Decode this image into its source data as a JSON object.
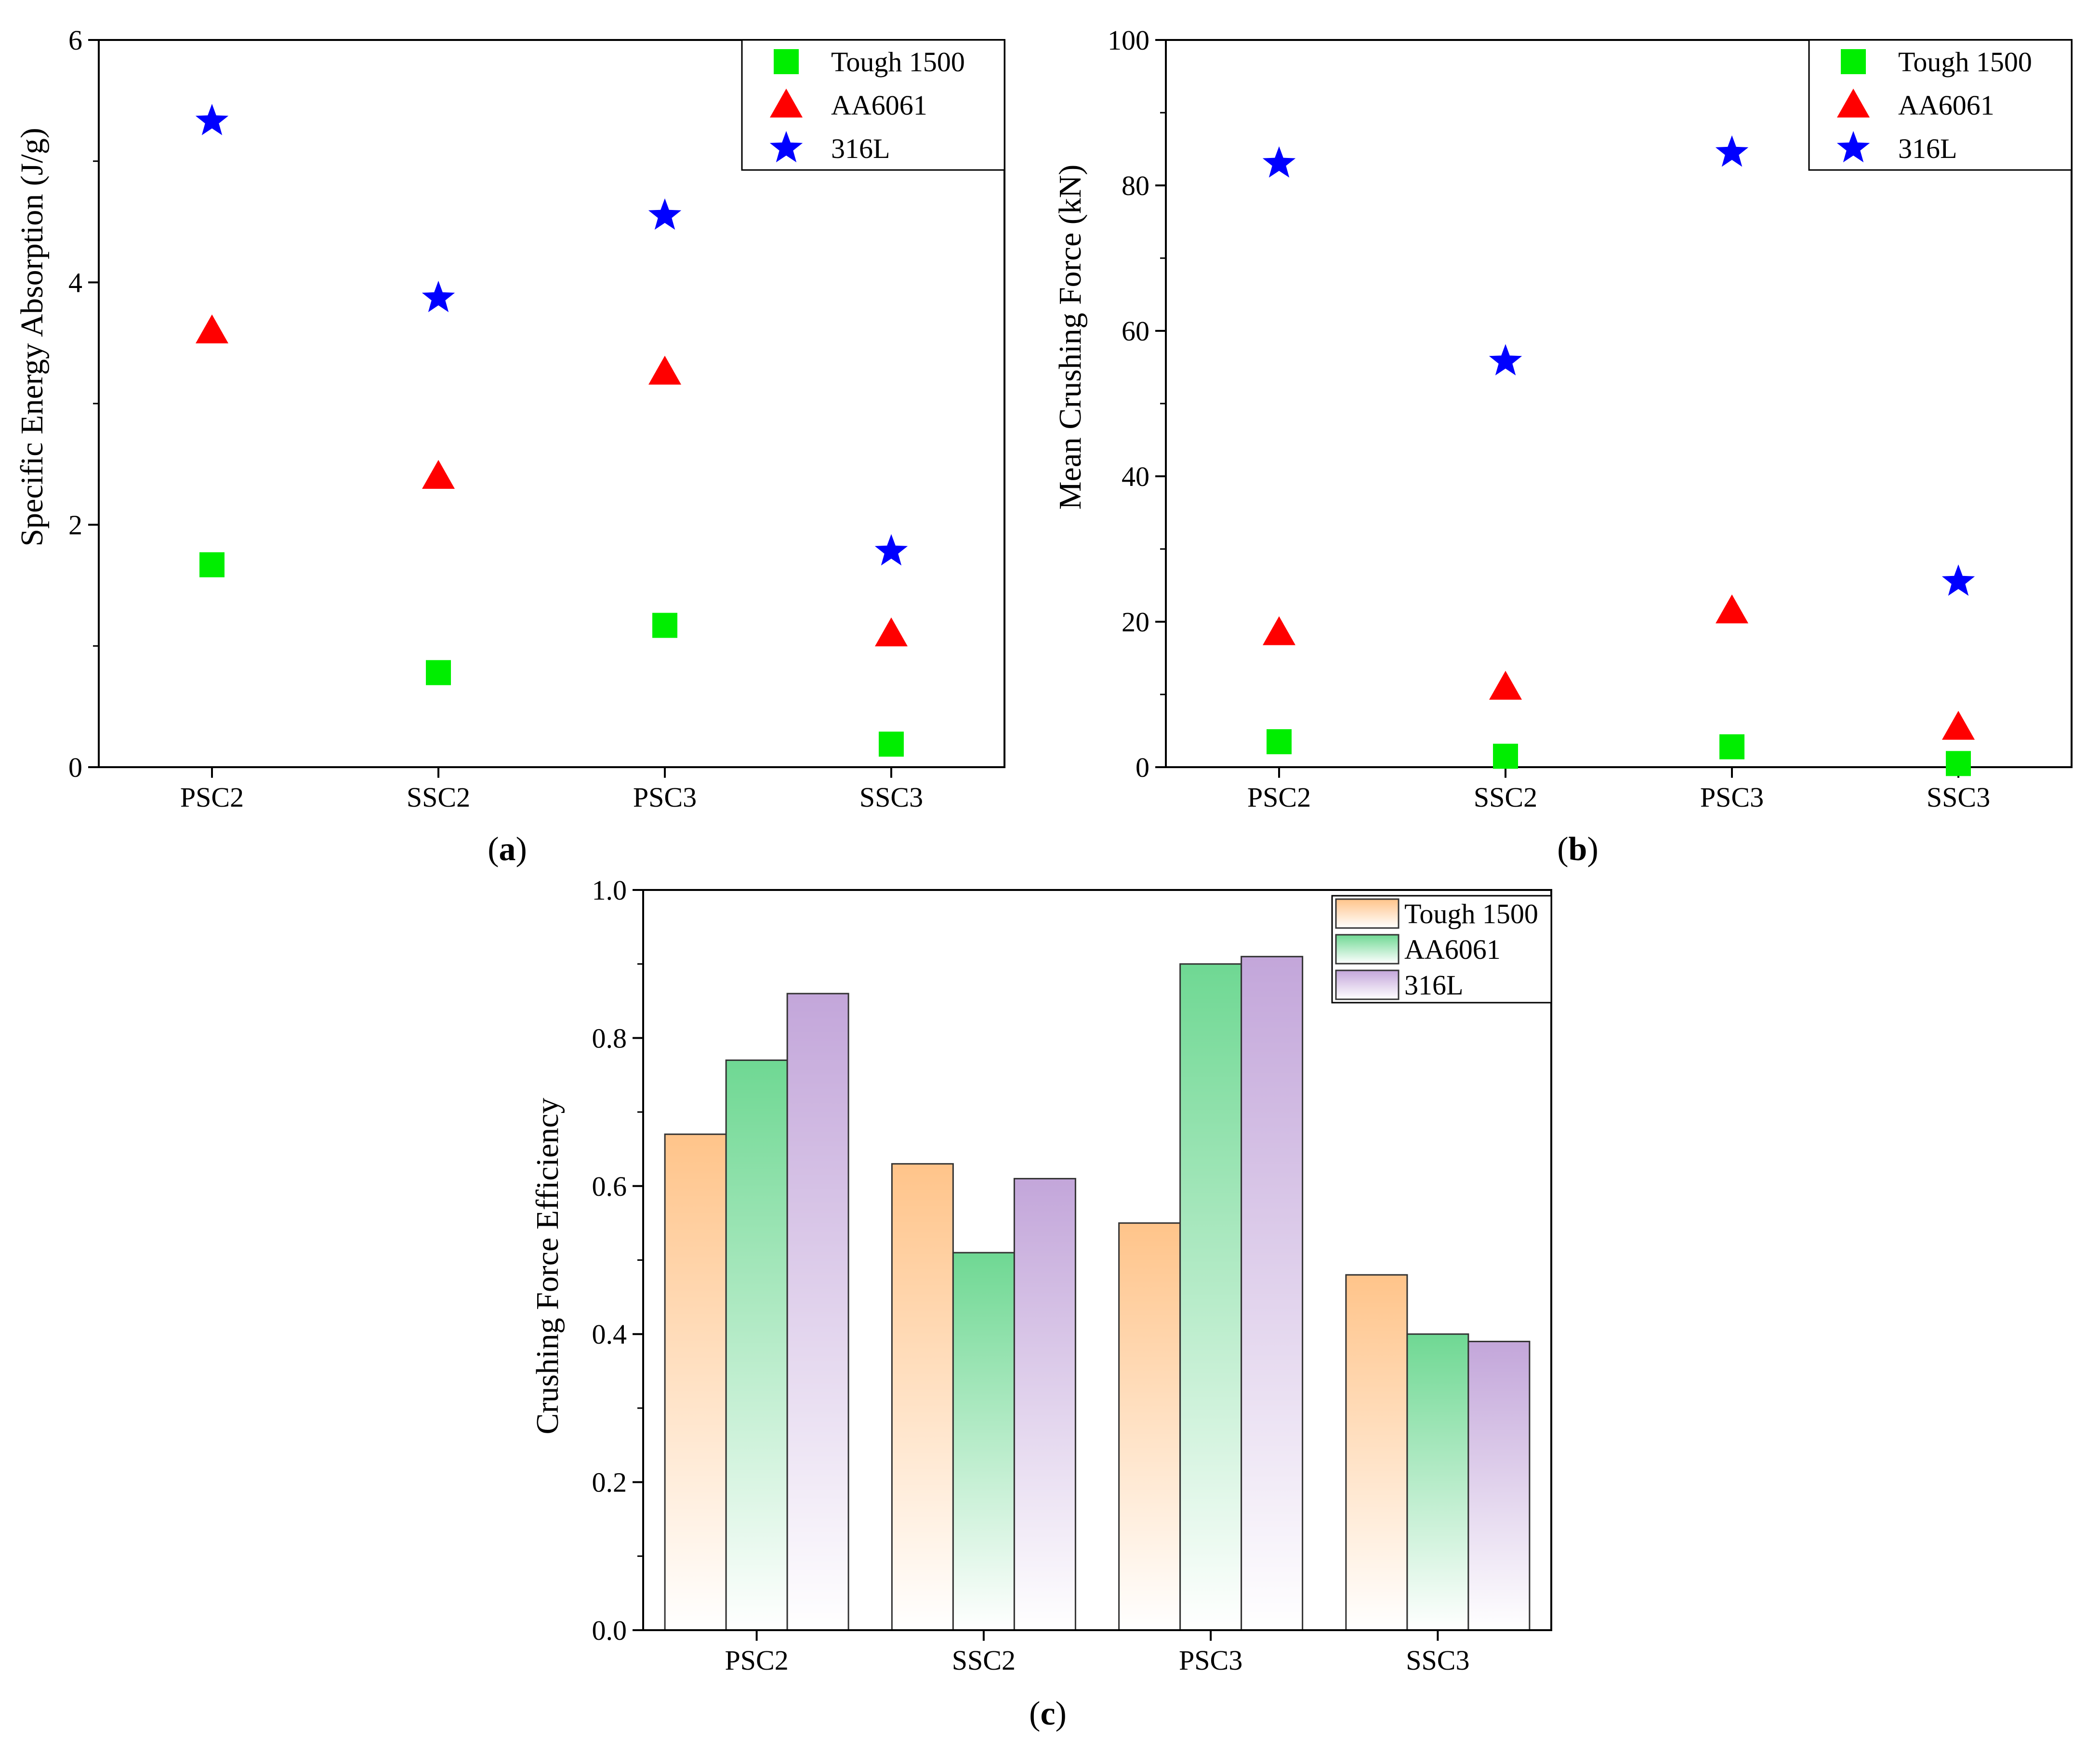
{
  "figure": {
    "panels": [
      {
        "id": "a",
        "label": "(a)",
        "label_letter": "a"
      },
      {
        "id": "b",
        "label": "(b)",
        "label_letter": "b"
      },
      {
        "id": "c",
        "label": "(c)",
        "label_letter": "c"
      }
    ]
  },
  "chart_data": [
    {
      "id": "a",
      "type": "scatter",
      "title": "",
      "xlabel": "",
      "ylabel": "Specific Energy Absorption (J/g)",
      "categories": [
        "PSC2",
        "SSC2",
        "PSC3",
        "SSC3"
      ],
      "ylim": [
        0,
        6
      ],
      "yticks": [
        0,
        2,
        4,
        6
      ],
      "grid": false,
      "legend": "top-right",
      "series": [
        {
          "name": "Tough 1500",
          "marker": "square",
          "color": "#00ee00",
          "values": [
            1.67,
            0.78,
            1.17,
            0.19
          ]
        },
        {
          "name": "AA6061",
          "marker": "triangle",
          "color": "#ff0000",
          "values": [
            3.6,
            2.4,
            3.26,
            1.1
          ]
        },
        {
          "name": "316L",
          "marker": "star",
          "color": "#0000ff",
          "values": [
            5.33,
            3.87,
            4.55,
            1.78
          ]
        }
      ]
    },
    {
      "id": "b",
      "type": "scatter",
      "title": "",
      "xlabel": "",
      "ylabel": "Mean Crushing Force (kN)",
      "categories": [
        "PSC2",
        "SSC2",
        "PSC3",
        "SSC3"
      ],
      "ylim": [
        0,
        100
      ],
      "yticks": [
        0,
        20,
        40,
        60,
        80,
        100
      ],
      "grid": false,
      "legend": "top-right",
      "series": [
        {
          "name": "Tough 1500",
          "marker": "square",
          "color": "#00ee00",
          "values": [
            3.5,
            1.5,
            2.8,
            0.5
          ]
        },
        {
          "name": "AA6061",
          "marker": "triangle",
          "color": "#ff0000",
          "values": [
            18.5,
            11,
            21.5,
            5.5
          ]
        },
        {
          "name": "316L",
          "marker": "star",
          "color": "#0000ff",
          "values": [
            83,
            55.8,
            84.5,
            25.5
          ]
        }
      ]
    },
    {
      "id": "c",
      "type": "bar",
      "title": "",
      "xlabel": "",
      "ylabel": "Crushing Force Efficiency",
      "categories": [
        "PSC2",
        "SSC2",
        "PSC3",
        "SSC3"
      ],
      "ylim": [
        0,
        1.0
      ],
      "yticks": [
        "0.0",
        "0.2",
        "0.4",
        "0.6",
        "0.8",
        "1.0"
      ],
      "grid": false,
      "legend": "top-right",
      "series": [
        {
          "name": "Tough 1500",
          "color": "#ffc48a",
          "values": [
            0.67,
            0.63,
            0.55,
            0.48
          ]
        },
        {
          "name": "AA6061",
          "color": "#6fd893",
          "values": [
            0.77,
            0.51,
            0.9,
            0.4
          ]
        },
        {
          "name": "316L",
          "color": "#c3a6da",
          "values": [
            0.86,
            0.61,
            0.91,
            0.39
          ]
        }
      ]
    }
  ]
}
